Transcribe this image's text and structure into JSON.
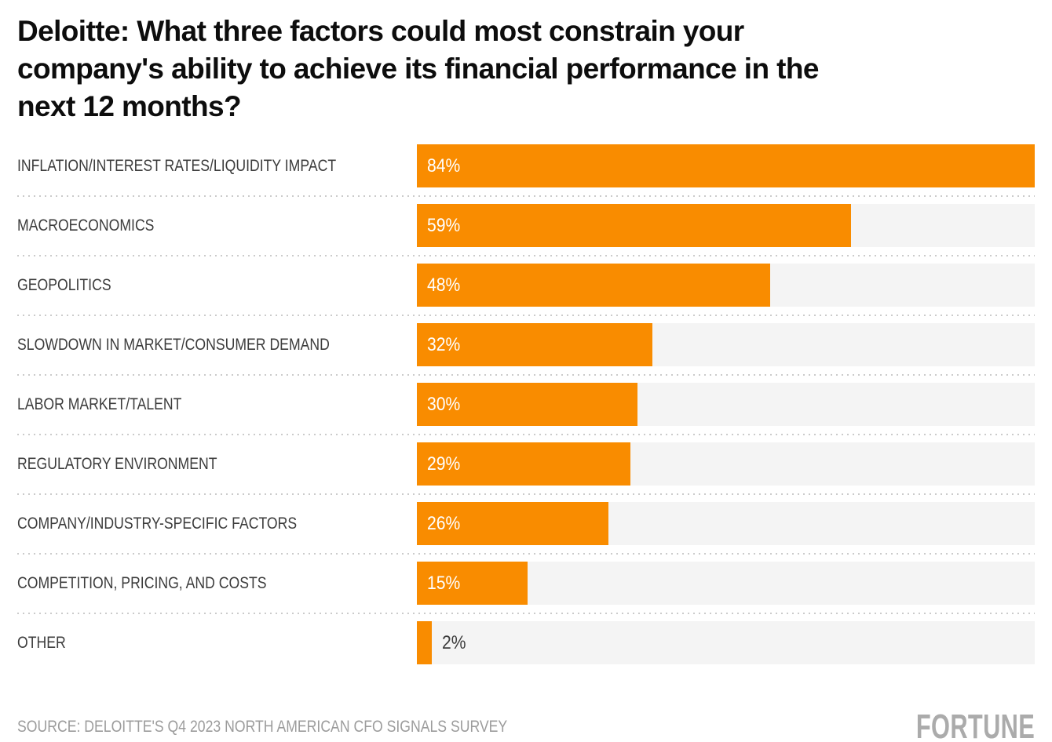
{
  "title_lines": [
    "Deloitte: What three factors could most constrain your",
    "company's ability to achieve its financial performance in the",
    "next 12 months?"
  ],
  "footer": {
    "source": "SOURCE: DELOITTE'S Q4 2023 NORTH AMERICAN CFO SIGNALS SURVEY",
    "brand": "FORTUNE"
  },
  "colors": {
    "bar": "#f98c00",
    "track": "#f4f4f4",
    "title_text": "#0d0d0d",
    "label_text": "#3c3c3c",
    "value_text_inside": "#ffffff",
    "separator": "#cbcbcb",
    "source_text": "#9c9c9c",
    "brand_text": "#ababab"
  },
  "chart_data": {
    "type": "bar",
    "orientation": "horizontal",
    "title": "Deloitte: What three factors could most constrain your company's ability to achieve its financial performance in the next 12 months?",
    "categories": [
      "INFLATION/INTEREST RATES/LIQUIDITY IMPACT",
      "MACROECONOMICS",
      "GEOPOLITICS",
      "SLOWDOWN IN MARKET/CONSUMER DEMAND",
      "LABOR MARKET/TALENT",
      "REGULATORY ENVIRONMENT",
      "COMPANY/INDUSTRY-SPECIFIC FACTORS",
      "COMPETITION, PRICING, AND COSTS",
      "OTHER"
    ],
    "values": [
      84,
      59,
      48,
      32,
      30,
      29,
      26,
      15,
      2
    ],
    "value_labels": [
      "84%",
      "59%",
      "48%",
      "32%",
      "30%",
      "29%",
      "26%",
      "15%",
      "2%"
    ],
    "unit": "%",
    "xlim": [
      0,
      84
    ],
    "grid": false,
    "legend": false,
    "bar_color": "#f98c00",
    "track_color": "#f4f4f4"
  }
}
